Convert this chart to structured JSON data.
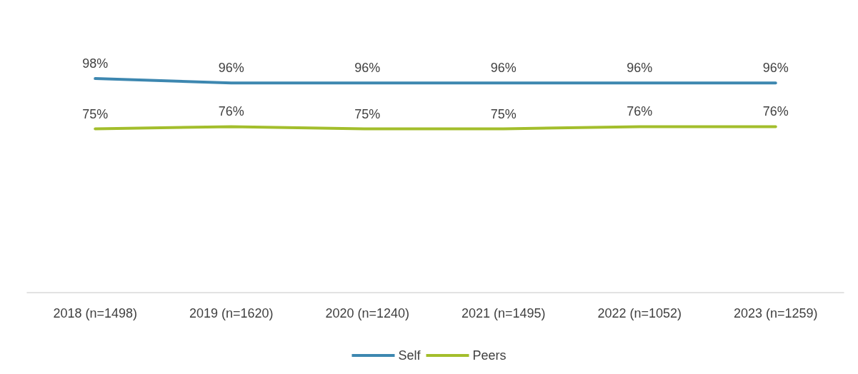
{
  "chart_data": {
    "type": "line",
    "categories": [
      "2018 (n=1498)",
      "2019 (n=1620)",
      "2020 (n=1240)",
      "2021 (n=1495)",
      "2022 (n=1052)",
      "2023 (n=1259)"
    ],
    "series": [
      {
        "name": "Self",
        "color": "#3d87b0",
        "values": [
          98,
          96,
          96,
          96,
          96,
          96
        ],
        "value_labels": [
          "98%",
          "96%",
          "96%",
          "96%",
          "96%",
          "96%"
        ]
      },
      {
        "name": "Peers",
        "color": "#a3be2c",
        "values": [
          75,
          76,
          75,
          75,
          76,
          76
        ],
        "value_labels": [
          "75%",
          "76%",
          "75%",
          "75%",
          "76%",
          "76%"
        ]
      }
    ],
    "tick_labels": "x",
    "grid": false,
    "legend": "bottom",
    "marker": "none",
    "line_style": "solid"
  }
}
